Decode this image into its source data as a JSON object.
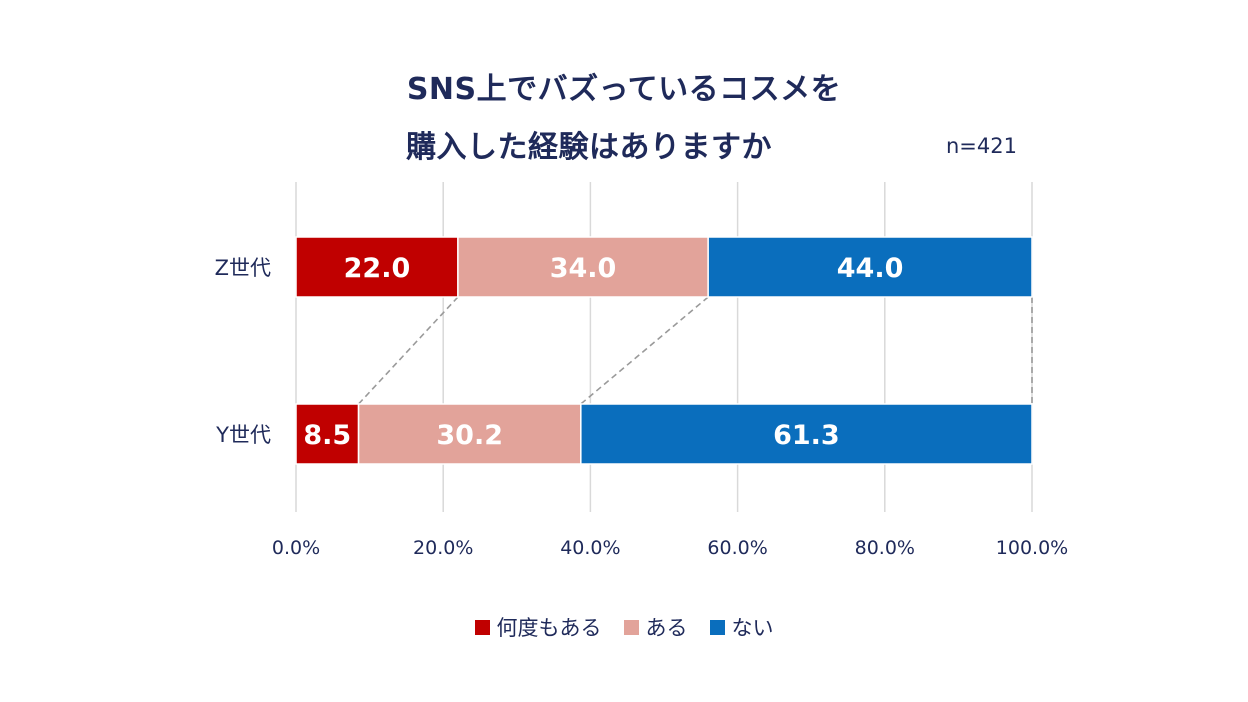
{
  "chart_data": {
    "type": "bar",
    "orientation": "horizontal",
    "stacked": true,
    "title": [
      "SNS上でバズっているコスメを",
      "購入した経験はありますか"
    ],
    "annotation": "n=421",
    "categories": [
      "Z世代",
      "Y世代"
    ],
    "series": [
      {
        "name": "何度もある",
        "values": [
          22.0,
          8.5
        ],
        "labels": [
          "22.0",
          "8.5"
        ],
        "color": "#c00000"
      },
      {
        "name": "ある",
        "values": [
          34.0,
          30.2
        ],
        "labels": [
          "34.0",
          "30.2"
        ],
        "color": "#e2a39a"
      },
      {
        "name": "ない",
        "values": [
          44.0,
          61.3
        ],
        "labels": [
          "44.0",
          "61.3"
        ],
        "color": "#0a6ebd"
      }
    ],
    "x_ticks": [
      {
        "value": 0,
        "label": "0.0%"
      },
      {
        "value": 20,
        "label": "20.0%"
      },
      {
        "value": 40,
        "label": "40.0%"
      },
      {
        "value": 60,
        "label": "60.0%"
      },
      {
        "value": 80,
        "label": "80.0%"
      },
      {
        "value": 100,
        "label": "100.0%"
      }
    ],
    "xlim": [
      0,
      100
    ],
    "grid": true,
    "series_lines": true,
    "legend_position": "bottom"
  }
}
